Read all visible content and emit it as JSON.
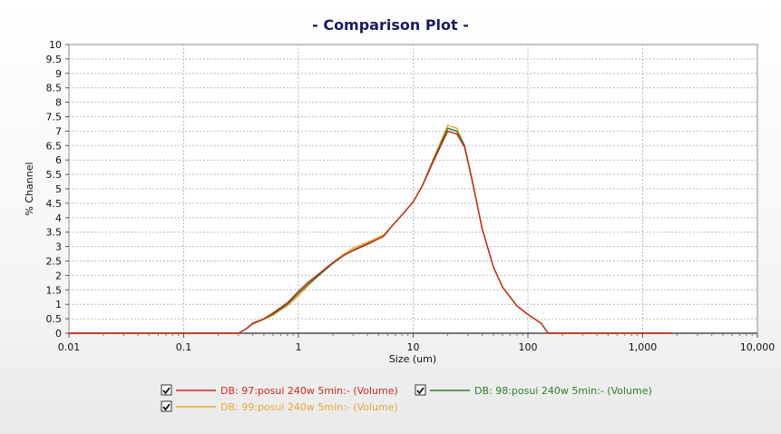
{
  "chart_data": {
    "type": "line",
    "title": "- Comparison Plot -",
    "xlabel": "Size (um)",
    "ylabel": "% Channel",
    "xscale": "log",
    "xlim": [
      0.01,
      10000
    ],
    "ylim": [
      0,
      10
    ],
    "grid": true,
    "x_ticks": [
      0.01,
      0.1,
      1,
      10,
      100,
      1000,
      10000
    ],
    "x_tick_labels": [
      "0.01",
      "0.1",
      "1",
      "10",
      "100",
      "1,000",
      "10,000"
    ],
    "y_ticks": [
      0,
      0.5,
      1,
      1.5,
      2,
      2.5,
      3,
      3.5,
      4,
      4.5,
      5,
      5.5,
      6,
      6.5,
      7,
      7.5,
      8,
      8.5,
      9,
      9.5,
      10
    ],
    "y_tick_labels": [
      "0",
      "0.5",
      "1",
      "1.5",
      "2",
      "2.5",
      "3",
      "3.5",
      "4",
      "4.5",
      "5",
      "5.5",
      "6",
      "6.5",
      "7",
      "7.5",
      "8",
      "8.5",
      "9",
      "9.5",
      "10"
    ],
    "legend_position": "bottom",
    "series": [
      {
        "name": "DB: 97:posui 240w  5min:- (Volume)",
        "color": "#cc2a1a",
        "checked": true,
        "x": [
          0.01,
          0.3,
          0.35,
          0.4,
          0.5,
          0.6,
          0.8,
          1.0,
          1.2,
          1.5,
          2,
          2.5,
          3,
          4,
          5.5,
          6.5,
          8,
          10,
          12,
          15,
          20,
          24,
          28,
          33,
          40,
          50,
          60,
          80,
          100,
          130,
          150,
          1000,
          1800
        ],
        "y": [
          0,
          0,
          0.15,
          0.35,
          0.5,
          0.7,
          1.05,
          1.45,
          1.75,
          2.05,
          2.45,
          2.7,
          2.88,
          3.1,
          3.35,
          3.7,
          4.1,
          4.55,
          5.1,
          5.95,
          7.0,
          6.9,
          6.45,
          5.2,
          3.6,
          2.3,
          1.6,
          0.95,
          0.65,
          0.35,
          0.0,
          0,
          0
        ]
      },
      {
        "name": "DB: 98:posui 240w  5min:- (Volume)",
        "color": "#2e7d2e",
        "checked": true,
        "x": [
          0.01,
          0.3,
          0.35,
          0.4,
          0.5,
          0.6,
          0.8,
          1.0,
          1.2,
          1.5,
          2,
          2.5,
          3,
          4,
          5.5,
          6.5,
          8,
          10,
          12,
          15,
          20,
          24,
          28,
          33,
          40,
          50,
          60,
          80,
          100,
          130,
          150,
          1000,
          1800
        ],
        "y": [
          0,
          0,
          0.15,
          0.33,
          0.49,
          0.66,
          1.0,
          1.38,
          1.68,
          2.0,
          2.42,
          2.7,
          2.86,
          3.08,
          3.36,
          3.7,
          4.1,
          4.55,
          5.1,
          6.0,
          7.1,
          7.0,
          6.5,
          5.2,
          3.6,
          2.3,
          1.6,
          0.95,
          0.65,
          0.35,
          0.0,
          0,
          0
        ]
      },
      {
        "name": "DB: 99:posui 240w  5min:- (Volume)",
        "color": "#e8a838",
        "checked": true,
        "x": [
          0.01,
          0.3,
          0.35,
          0.4,
          0.5,
          0.6,
          0.8,
          1.0,
          1.2,
          1.5,
          2,
          2.5,
          3,
          4,
          5.5,
          6.5,
          8,
          10,
          12,
          15,
          20,
          24,
          28,
          33,
          40,
          50,
          60,
          80,
          100,
          130,
          150,
          1000,
          1800
        ],
        "y": [
          0,
          0,
          0.15,
          0.32,
          0.48,
          0.62,
          0.95,
          1.3,
          1.62,
          2.0,
          2.45,
          2.75,
          2.95,
          3.15,
          3.4,
          3.7,
          4.1,
          4.55,
          5.1,
          6.05,
          7.2,
          7.1,
          6.5,
          5.25,
          3.6,
          2.3,
          1.6,
          0.95,
          0.65,
          0.35,
          0.0,
          0,
          0
        ]
      }
    ]
  }
}
